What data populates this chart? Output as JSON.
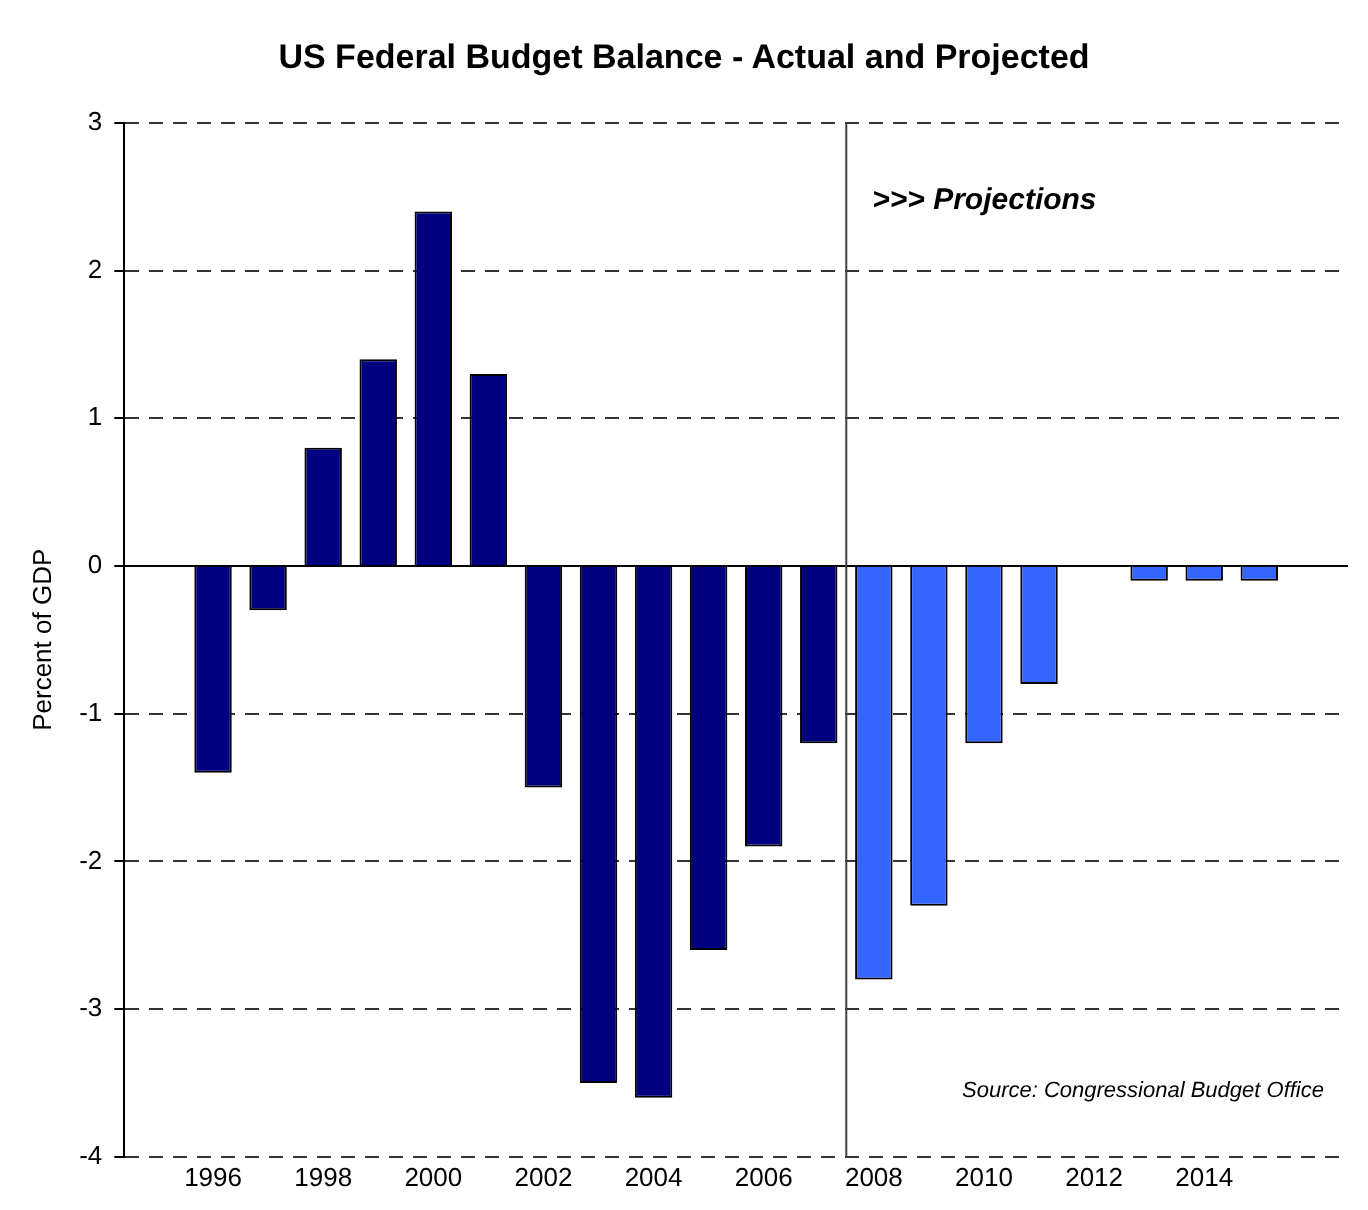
{
  "chart_data": {
    "type": "bar",
    "title": "US Federal Budget Balance - Actual and Projected",
    "ylabel": "Percent of GDP",
    "x": [
      1996,
      1997,
      1998,
      1999,
      2000,
      2001,
      2002,
      2003,
      2004,
      2005,
      2006,
      2007,
      2008,
      2009,
      2010,
      2011,
      2012,
      2013,
      2014,
      2015
    ],
    "values": [
      -1.4,
      -0.3,
      0.8,
      1.4,
      2.4,
      1.3,
      -1.5,
      -3.5,
      -3.6,
      -2.6,
      -1.9,
      -1.2,
      -2.8,
      -2.3,
      -1.2,
      -0.8,
      0,
      -0.1,
      -0.1,
      -0.1
    ],
    "colors": [
      "#000080",
      "#000080",
      "#000080",
      "#000080",
      "#000080",
      "#000080",
      "#000080",
      "#000080",
      "#000080",
      "#000080",
      "#000080",
      "#000080",
      "#3366ff",
      "#3366ff",
      "#3366ff",
      "#3366ff",
      "#3366ff",
      "#3366ff",
      "#3366ff",
      "#3366ff"
    ],
    "xlim": [
      1995.5,
      2015.5
    ],
    "xticks": [
      1996,
      1998,
      2000,
      2002,
      2004,
      2006,
      2008,
      2010,
      2012,
      2014
    ],
    "ylim": [
      -4,
      3
    ],
    "yticks": [
      -4,
      -3,
      -2,
      -1,
      0,
      1,
      2,
      3
    ],
    "grid": "y",
    "legend": false,
    "ref_lines": [
      {
        "axis": "x",
        "value": 2007.5,
        "color": "#404040"
      }
    ],
    "annotations": [
      ">>> Projections",
      "Source: Congressional Budget Office"
    ]
  }
}
